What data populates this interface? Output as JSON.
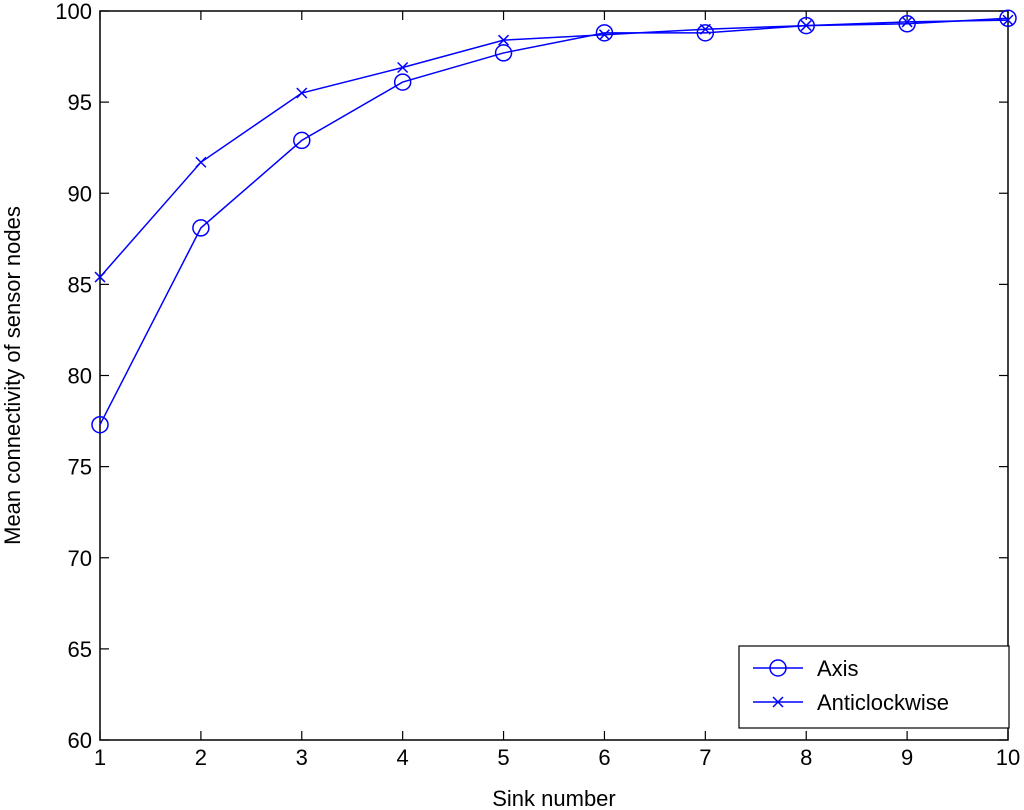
{
  "chart_data": {
    "type": "line",
    "xlabel": "Sink number",
    "ylabel": "Mean connectivity of sensor nodes",
    "xlim": [
      1,
      10
    ],
    "ylim": [
      60,
      100
    ],
    "xticks": [
      "1",
      "2",
      "3",
      "4",
      "5",
      "6",
      "7",
      "8",
      "9",
      "10"
    ],
    "yticks": [
      "60",
      "65",
      "70",
      "75",
      "80",
      "85",
      "90",
      "95",
      "100"
    ],
    "grid": false,
    "legend": "bottom-right",
    "x": [
      1,
      2,
      3,
      4,
      5,
      6,
      7,
      8,
      9,
      10
    ],
    "series": [
      {
        "name": "Axis",
        "marker": "circle",
        "color": "#0000ff",
        "values": [
          77.3,
          88.1,
          92.9,
          96.1,
          97.7,
          98.8,
          98.8,
          99.2,
          99.3,
          99.6
        ]
      },
      {
        "name": "Anticlockwise",
        "marker": "x",
        "color": "#0000ff",
        "values": [
          85.4,
          91.7,
          95.5,
          96.9,
          98.4,
          98.7,
          99.0,
          99.2,
          99.4,
          99.5
        ]
      }
    ]
  }
}
